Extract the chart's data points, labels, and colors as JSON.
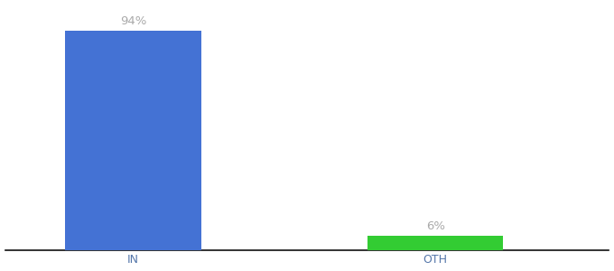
{
  "categories": [
    "IN",
    "OTH"
  ],
  "values": [
    94,
    6
  ],
  "bar_colors": [
    "#4472d4",
    "#33cc33"
  ],
  "label_texts": [
    "94%",
    "6%"
  ],
  "background_color": "#ffffff",
  "text_color": "#aaaaaa",
  "label_fontsize": 9.5,
  "tick_fontsize": 9,
  "tick_color": "#5577aa",
  "ylim": [
    0,
    105
  ],
  "bar_width": 0.18,
  "x_positions": [
    0.22,
    0.62
  ]
}
